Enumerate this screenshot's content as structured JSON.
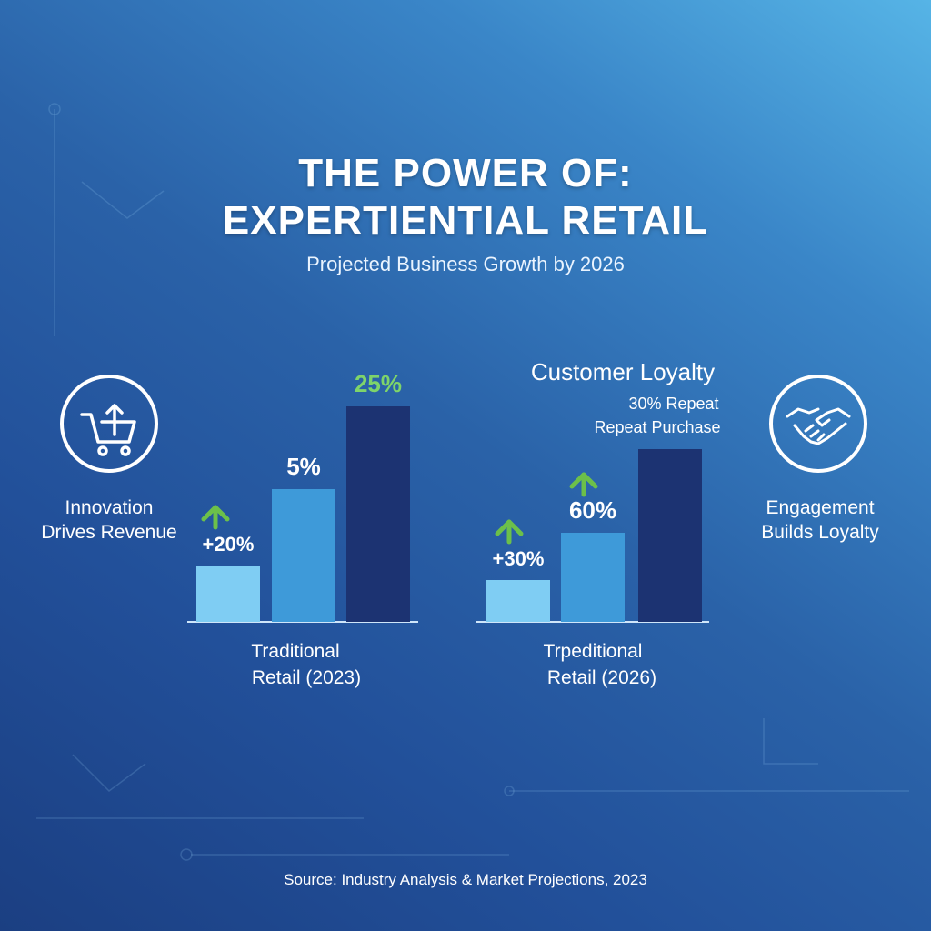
{
  "header": {
    "title_line1": "THE POWER OF:",
    "title_line2": "EXPERTIENTIAL RETAIL",
    "subtitle": "Projected Business Growth by 2026"
  },
  "left_panel": {
    "icon": "shopping-cart-upload-icon",
    "caption_line1": "Innovation",
    "caption_line2": "Drives Revenue"
  },
  "right_panel": {
    "icon": "handshake-icon",
    "caption_line1": "Engagement",
    "caption_line2": "Builds Loyalty"
  },
  "chart_data": [
    {
      "type": "bar",
      "values": [
        20,
        5,
        25
      ],
      "value_labels": [
        "+20%",
        "5%",
        "25%"
      ],
      "arrows": [
        true,
        false,
        false
      ],
      "xlabel_line1": "Traditional",
      "xlabel_line2": "Retail (2023)",
      "colors": [
        "#7fcdf3",
        "#3e9ad9",
        "#1c3372"
      ],
      "label_colors": [
        "#ffffff",
        "#ffffff",
        "#7ed46a"
      ]
    },
    {
      "type": "bar",
      "title": "Customer Loyalty",
      "values": [
        30,
        60,
        30
      ],
      "value_labels": [
        "+30%",
        "60%",
        "30% Repeat"
      ],
      "bar3_sublabel": "Repeat Purchase",
      "arrows": [
        true,
        true,
        false
      ],
      "xlabel_line1": "Trpeditional",
      "xlabel_line2": "Retail (2026)",
      "colors": [
        "#7fcdf3",
        "#3e9ad9",
        "#1c3372"
      ],
      "label_colors": [
        "#ffffff",
        "#ffffff",
        "#ffffff"
      ]
    }
  ],
  "colors": {
    "arrow_green": "#6cc04a",
    "bar_light": "#7fcdf3",
    "bar_mid": "#3e9ad9",
    "bar_dark": "#1c3372"
  },
  "footer": {
    "source": "Source: Industry Analysis & Market Projections, 2023"
  }
}
